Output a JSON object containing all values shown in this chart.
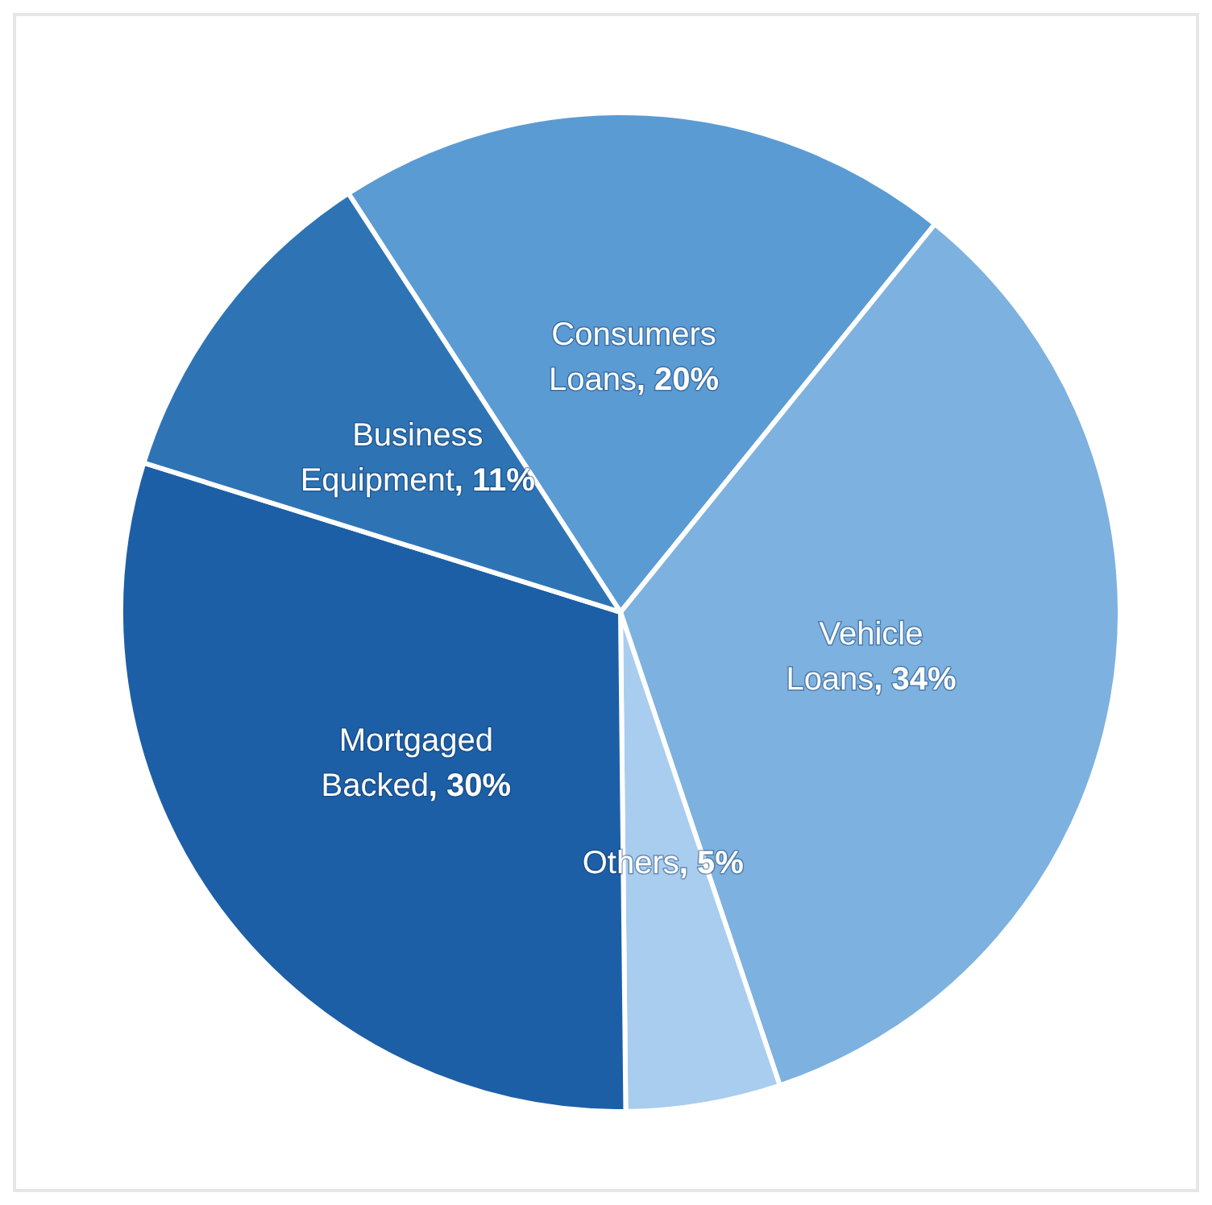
{
  "chart_data": {
    "type": "pie",
    "categories": [
      "Consumers Loans",
      "Vehicle Loans",
      "Others",
      "Mortgaged Backed",
      "Business Equipment"
    ],
    "values": [
      20,
      34,
      5,
      30,
      11
    ],
    "value_labels": [
      ", 20%",
      ", 34%",
      ", 5%",
      ", 30%",
      ", 11%"
    ],
    "colors": [
      "#5b9bd3",
      "#7db1df",
      "#a8cdee",
      "#1d5fa6",
      "#2e74b5"
    ],
    "legend": false
  }
}
